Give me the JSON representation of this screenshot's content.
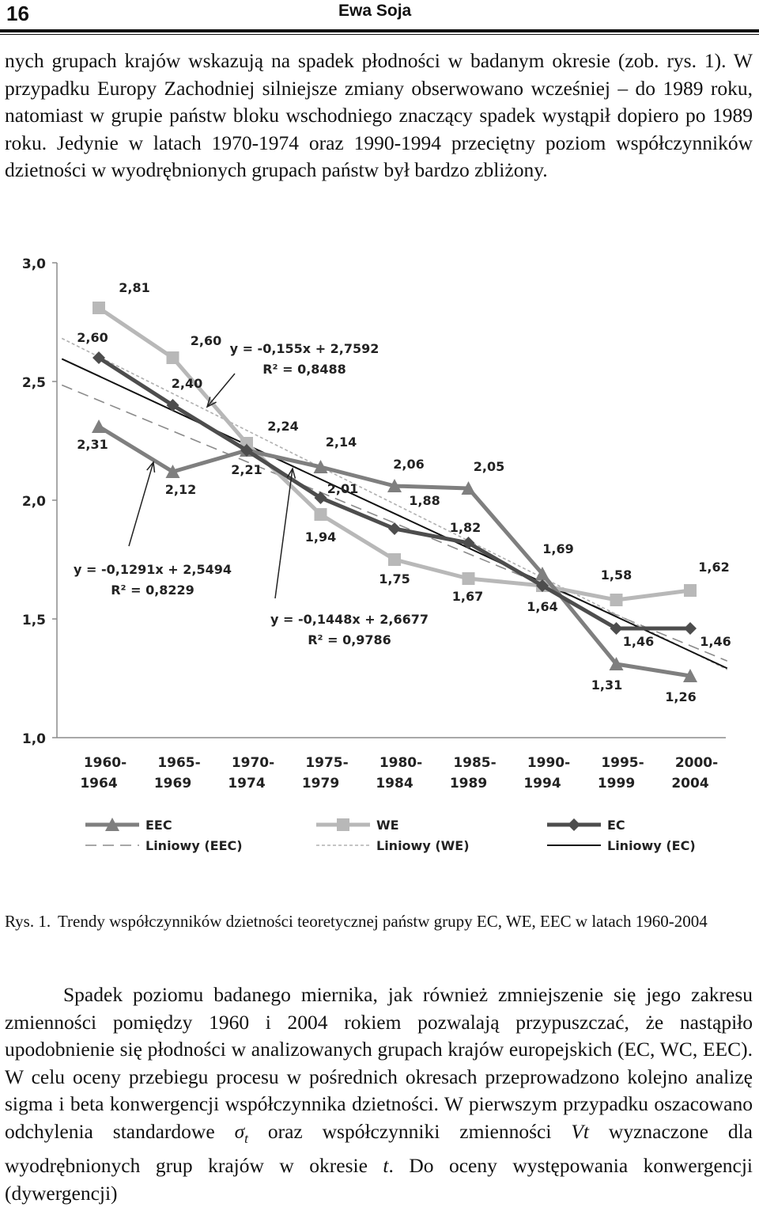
{
  "header": {
    "page_number": "16",
    "author": "Ewa Soja"
  },
  "paragraph1": "nych grupach krajów wskazują na spadek płodności w badanym okresie (zob. rys. 1). W przypadku Europy Zachodniej silniejsze zmiany obserwowano wcześniej – do 1989 roku, natomiast w grupie państw bloku wschodniego znaczący spadek wystąpił dopiero po 1989 roku. Jedynie w latach 1970-1974 oraz 1990-1994 przeciętny poziom współczynników dzietności w wyodrębnionych grupach państw był bardzo zbliżony.",
  "caption": {
    "label": "Rys. 1.",
    "text": "Trendy współczynników dzietności teoretycznej państw grupy EC, WE, EEC w latach 1960-2004"
  },
  "paragraph2": {
    "part1": "Spadek poziomu badanego miernika, jak również zmniejszenie się jego zakresu zmienności pomiędzy 1960 i 2004 rokiem pozwalają przypuszczać, że nastąpiło upodobnienie się płodności w analizowanych grupach krajów europejskich (EC, WC, EEC). W celu oceny przebiegu procesu w pośrednich okresach przeprowadzono kolejno analizę sigma i beta konwergencji współczynnika dzietności. W pierwszym przypadku oszacowano odchylenia standardowe",
    "sigma": "σ",
    "sigma_sub": "t",
    "part2": "oraz współczynniki zmienności",
    "v": "Vt",
    "part3": "wyznaczone dla wyodrębnionych grup krajów w okresie",
    "t": "t",
    "part4": ". Do oceny występowania konwergencji (dywergencji)"
  },
  "chart_data": {
    "type": "line",
    "categories": [
      "1960-1964",
      "1965-1969",
      "1970-1974",
      "1975-1979",
      "1980-1984",
      "1985-1989",
      "1990-1994",
      "1995-1999",
      "2000-2004"
    ],
    "ylim": [
      1.0,
      3.0
    ],
    "yticks": [
      "1,0",
      "1,5",
      "2,0",
      "2,5",
      "3,0"
    ],
    "ytick_values": [
      1.0,
      1.5,
      2.0,
      2.5,
      3.0
    ],
    "grid": false,
    "legend_position": "bottom",
    "series": [
      {
        "name": "EEC",
        "marker": "triangle",
        "color": "#7f7f7f",
        "values": [
          2.31,
          2.12,
          2.21,
          2.14,
          2.06,
          2.05,
          1.69,
          1.31,
          1.26
        ],
        "labels": [
          "2,31",
          "2,12",
          "2,21",
          "2,14",
          "2,06",
          "2,05",
          "1,69",
          "1,31",
          "1,26"
        ]
      },
      {
        "name": "WE",
        "marker": "square",
        "color": "#b8b8b8",
        "values": [
          2.81,
          2.6,
          2.24,
          1.94,
          1.75,
          1.67,
          1.64,
          1.58,
          1.62
        ],
        "labels": [
          "2,81",
          "2,60",
          "2,24",
          "1,94",
          "1,75",
          "1,67",
          "1,64",
          "1,58",
          "1,62"
        ]
      },
      {
        "name": "EC",
        "marker": "diamond",
        "color": "#4d4d4d",
        "values": [
          2.6,
          2.4,
          2.21,
          2.01,
          1.88,
          1.82,
          1.64,
          1.46,
          1.46
        ],
        "labels": [
          "2,60",
          "2,40",
          "",
          "2,01",
          "1,88",
          "1,82",
          "",
          "1,46",
          "1,46"
        ]
      }
    ],
    "trendlines": [
      {
        "name": "Liniowy (EEC)",
        "slope": -0.1291,
        "intercept": 2.5494,
        "color": "#8a8a8a",
        "dash": "14,8"
      },
      {
        "name": "Liniowy (WE)",
        "slope": -0.155,
        "intercept": 2.7592,
        "color": "#b0b0b0",
        "dash": "4,3"
      },
      {
        "name": "Liniowy (EC)",
        "slope": -0.1448,
        "intercept": 2.6677,
        "color": "#111111",
        "dash": ""
      }
    ],
    "annotations": [
      {
        "eq": "y = -0,155x + 2,7592",
        "r2": "R² = 0,8488"
      },
      {
        "eq": "y = -0,1291x + 2,5494",
        "r2": "R² = 0,8229"
      },
      {
        "eq": "y = -0,1448x + 2,6677",
        "r2": "R² = 0,9786"
      }
    ]
  }
}
